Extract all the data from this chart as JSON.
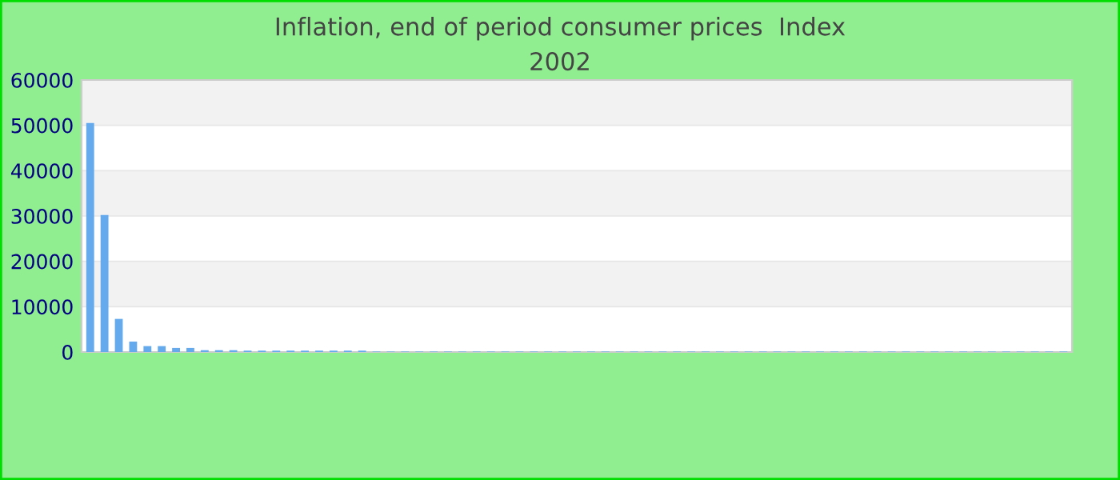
{
  "chart_data": {
    "type": "bar",
    "title": "Inflation, end of period consumer prices  Index\n2002",
    "categories": [
      null,
      null,
      null,
      null,
      null,
      null,
      null,
      null,
      null,
      null,
      null,
      null,
      null,
      null,
      null,
      null,
      null,
      null,
      null,
      null,
      null,
      null,
      null,
      null,
      null,
      null,
      null,
      null,
      null,
      null,
      null,
      null,
      null,
      null,
      null,
      null,
      null,
      null,
      null,
      null,
      null,
      null,
      null,
      null,
      null,
      null,
      null,
      null,
      null,
      null,
      null,
      null,
      null,
      null,
      null,
      null,
      null,
      null,
      null,
      null,
      null,
      null,
      null,
      null,
      null,
      null,
      null,
      null,
      null
    ],
    "values": [
      50500,
      30200,
      7300,
      2300,
      1300,
      1300,
      900,
      900,
      400,
      400,
      400,
      300,
      300,
      300,
      300,
      300,
      300,
      300,
      300,
      300,
      100,
      100,
      100,
      100,
      100,
      100,
      100,
      100,
      100,
      100,
      100,
      100,
      100,
      100,
      100,
      100,
      100,
      100,
      100,
      100,
      100,
      100,
      100,
      100,
      100,
      100,
      100,
      100,
      100,
      100,
      100,
      100,
      100,
      100,
      100,
      100,
      100,
      100,
      100,
      100,
      100,
      100,
      100,
      100,
      100,
      100,
      100,
      100,
      100
    ],
    "color": "#66aaee",
    "ylim": [
      0,
      60000
    ],
    "yticks": [
      0,
      10000,
      20000,
      30000,
      40000,
      50000,
      60000
    ],
    "grid": "y"
  }
}
